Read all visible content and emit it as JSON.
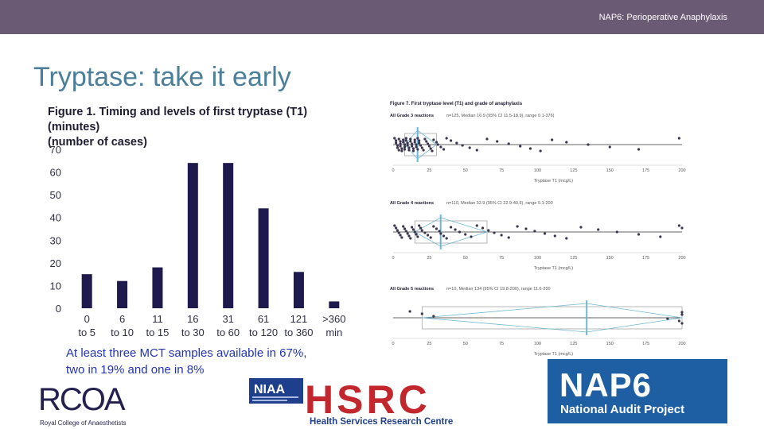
{
  "header": {
    "text": "NAP6: Perioperative Anaphylaxis"
  },
  "slide": {
    "title": "Tryptase: take it early"
  },
  "figure1": {
    "title_line1": "Figure 1. Timing and levels of first tryptase (T1) (minutes)",
    "title_line2": "(number of cases)"
  },
  "caption": {
    "line1": "At least three MCT samples available in 67%,",
    "line2": "two in 19% and one in 8%"
  },
  "chart_data": [
    {
      "type": "bar",
      "title": "Figure 1. Timing and levels of first tryptase (T1) (minutes) (number of cases)",
      "categories": [
        "0 to 5",
        "6 to 10",
        "11 to 15",
        "16 to 30",
        "31 to 60",
        "61 to 120",
        "121 to 360",
        ">360 min"
      ],
      "category_lines": [
        [
          "0",
          "to 5"
        ],
        [
          "6",
          "to 10"
        ],
        [
          "11",
          "to 15"
        ],
        [
          "16",
          "to 30"
        ],
        [
          "31",
          "to 60"
        ],
        [
          "61",
          "to 120"
        ],
        [
          "121",
          "to 360"
        ],
        [
          ">360",
          "min"
        ]
      ],
      "values": [
        15,
        12,
        18,
        64,
        64,
        44,
        16,
        3
      ],
      "ylim": [
        0,
        70
      ],
      "yticks": [
        0,
        10,
        20,
        30,
        40,
        50,
        60,
        70
      ],
      "bar_color": "#1f1a4e",
      "grid": false
    },
    {
      "type": "scatter",
      "title": "Figure 7. First tryptase level (T1) and grade of anaphylaxis",
      "xlabel": "Tryptase T1 (mcg/L)",
      "xlim": [
        0,
        200
      ],
      "xticks": [
        0,
        25,
        50,
        75,
        100,
        125,
        150,
        175,
        200
      ],
      "panels": [
        {
          "label": "All Grade 3 reactions",
          "stats": "n=125, Median 16.9 (95% CI 11.5-18.9), range 0.1-376)",
          "median": 16.9,
          "q1": 8,
          "q3": 30,
          "points": [
            1,
            2,
            2,
            3,
            3,
            4,
            4,
            5,
            5,
            5,
            6,
            6,
            7,
            7,
            8,
            8,
            8,
            9,
            9,
            10,
            10,
            11,
            11,
            12,
            12,
            13,
            13,
            14,
            14,
            15,
            15,
            16,
            16,
            17,
            17,
            18,
            18,
            19,
            20,
            21,
            22,
            23,
            24,
            25,
            26,
            27,
            28,
            30,
            31,
            33,
            35,
            37,
            40,
            44,
            48,
            53,
            58,
            65,
            72,
            80,
            88,
            95,
            102,
            110,
            120,
            135,
            150,
            170,
            198
          ]
        },
        {
          "label": "All Grade 4 reactions",
          "stats": "n=110, Median 32.9 (95% CI 22.9-40.5), range 0.1-200",
          "median": 32.9,
          "q1": 15,
          "q3": 65,
          "points": [
            1,
            2,
            3,
            4,
            5,
            6,
            7,
            8,
            9,
            10,
            11,
            12,
            13,
            14,
            15,
            16,
            17,
            18,
            19,
            20,
            22,
            24,
            26,
            28,
            30,
            32,
            33,
            35,
            37,
            40,
            43,
            46,
            50,
            54,
            58,
            62,
            66,
            70,
            75,
            80,
            86,
            92,
            98,
            105,
            112,
            120,
            130,
            142,
            155,
            170,
            185,
            198,
            200
          ]
        },
        {
          "label": "All Grade 5 reactions",
          "stats": "n=10, Median 134 (95% CI 19.8-200), range 11.6-200",
          "median": 134,
          "q1": 20,
          "q3": 200,
          "points": [
            11.6,
            20,
            28,
            190,
            198,
            200,
            200,
            200
          ]
        }
      ],
      "point_color": "#3b3550",
      "accent_color": "#6fb7d6"
    }
  ],
  "logos": {
    "rcoa_text": "RCOA",
    "rcoa_sub": "Royal College of Anaesthetists",
    "niaa_text": "NIAA",
    "hsrc_text": "HSRC",
    "hsrc_sub": "Health Services Research Centre",
    "nap6_text": "NAP6",
    "nap6_sub": "National Audit Project"
  },
  "colors": {
    "header": "#6b5a74",
    "title": "#4a7e9a",
    "caption": "#2233b8",
    "nap6_bg": "#1e5fa4",
    "hsrc_red": "#c1272d",
    "niaa_blue": "#1e3f8c",
    "rcoa_navy": "#231f4f"
  }
}
